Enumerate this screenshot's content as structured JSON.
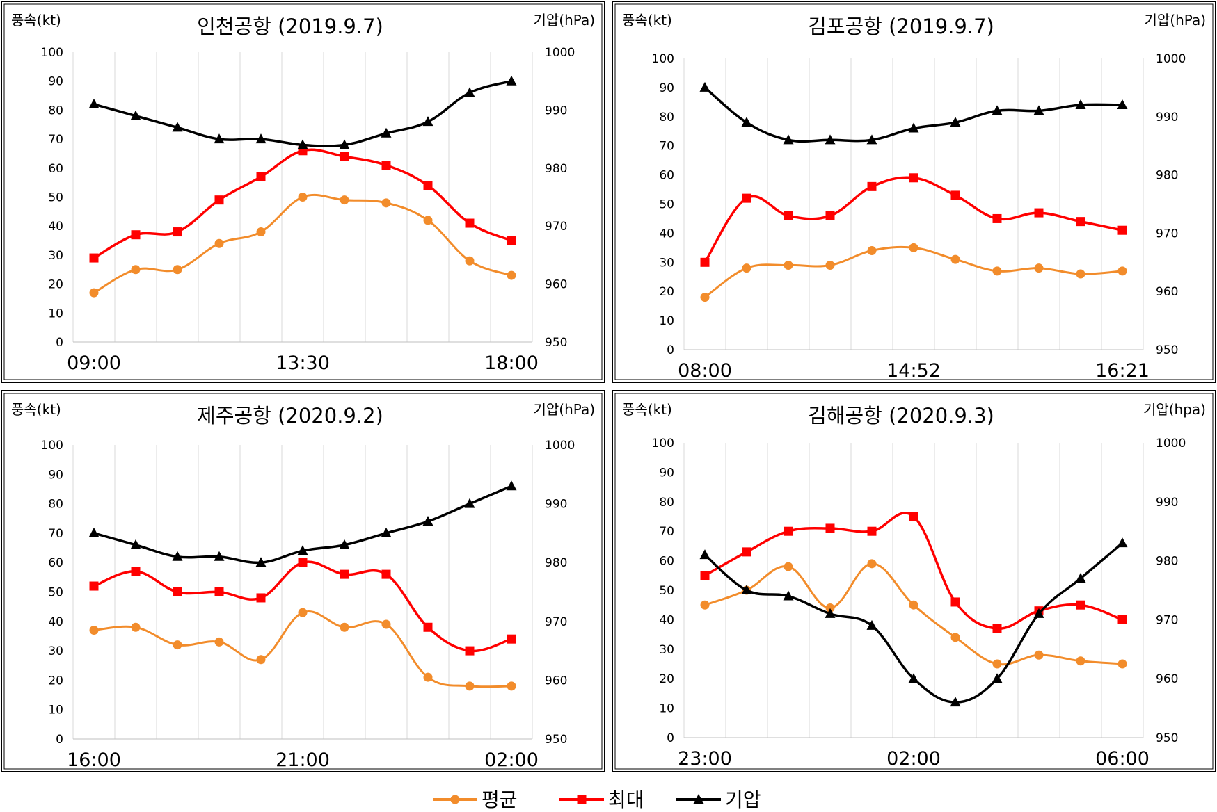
{
  "colors": {
    "avg": "#F28C2B",
    "max": "#FF0000",
    "pressure": "#000000",
    "grid": "#D9D9D9",
    "frame": "#000000"
  },
  "legend": {
    "avg": "평균",
    "max": "최대",
    "pressure": "기압"
  },
  "chart_data": [
    {
      "type": "line",
      "title": "인천공항 (2019.9.7)",
      "ylabel": "풍속(kt)",
      "y2label": "기압(hPa)",
      "ylim": [
        0,
        100
      ],
      "y2lim": [
        950,
        1000
      ],
      "y_ticks": [
        "0",
        "10",
        "20",
        "30",
        "40",
        "50",
        "60",
        "70",
        "80",
        "90",
        "100"
      ],
      "y2_ticks": [
        "950",
        "960",
        "970",
        "980",
        "990",
        "1000"
      ],
      "x_tick_labels": [
        "09:00",
        "13:30",
        "18:00"
      ],
      "series": [
        {
          "name": "평균",
          "axis": "left",
          "values": [
            17,
            25,
            25,
            34,
            38,
            50,
            49,
            48,
            42,
            28,
            23
          ]
        },
        {
          "name": "최대",
          "axis": "left",
          "values": [
            29,
            37,
            38,
            49,
            57,
            66,
            64,
            61,
            54,
            41,
            35
          ]
        },
        {
          "name": "기압",
          "axis": "right",
          "values": [
            991,
            989,
            987,
            985,
            985,
            984,
            984,
            986,
            988,
            993,
            995
          ]
        }
      ],
      "grid": true
    },
    {
      "type": "line",
      "title": "김포공항 (2019.9.7)",
      "ylabel": "풍속(kt)",
      "y2label": "기압(hPa)",
      "ylim": [
        0,
        100
      ],
      "y2lim": [
        950,
        1000
      ],
      "y_ticks": [
        "0",
        "10",
        "20",
        "30",
        "40",
        "50",
        "60",
        "70",
        "80",
        "90",
        "100"
      ],
      "y2_ticks": [
        "950",
        "960",
        "970",
        "980",
        "990",
        "1000"
      ],
      "x_tick_labels": [
        "08:00",
        "14:52",
        "16:21"
      ],
      "series": [
        {
          "name": "평균",
          "axis": "left",
          "values": [
            18,
            28,
            29,
            29,
            34,
            35,
            31,
            27,
            28,
            26,
            27
          ]
        },
        {
          "name": "최대",
          "axis": "left",
          "values": [
            30,
            52,
            46,
            46,
            56,
            59,
            53,
            45,
            47,
            44,
            41
          ]
        },
        {
          "name": "기압",
          "axis": "right",
          "values": [
            995,
            989,
            986,
            986,
            986,
            988,
            989,
            991,
            991,
            992,
            992
          ]
        }
      ],
      "grid": true
    },
    {
      "type": "line",
      "title": "제주공항 (2020.9.2)",
      "ylabel": "풍속(kt)",
      "y2label": "기압(hPa)",
      "ylim": [
        0,
        100
      ],
      "y2lim": [
        950,
        1000
      ],
      "y_ticks": [
        "0",
        "10",
        "20",
        "30",
        "40",
        "50",
        "60",
        "70",
        "80",
        "90",
        "100"
      ],
      "y2_ticks": [
        "950",
        "960",
        "970",
        "980",
        "990",
        "1000"
      ],
      "x_tick_labels": [
        "16:00",
        "21:00",
        "02:00"
      ],
      "series": [
        {
          "name": "평균",
          "axis": "left",
          "values": [
            37,
            38,
            32,
            33,
            27,
            43,
            38,
            39,
            21,
            18,
            18
          ]
        },
        {
          "name": "최대",
          "axis": "left",
          "values": [
            52,
            57,
            50,
            50,
            48,
            60,
            56,
            56,
            38,
            30,
            34
          ]
        },
        {
          "name": "기압",
          "axis": "right",
          "values": [
            985,
            983,
            981,
            981,
            980,
            982,
            983,
            985,
            987,
            990,
            993
          ]
        }
      ],
      "grid": true
    },
    {
      "type": "line",
      "title": "김해공항 (2020.9.3)",
      "ylabel": "풍속(kt)",
      "y2label": "기압(hpa)",
      "ylim": [
        0,
        100
      ],
      "y2lim": [
        950,
        1000
      ],
      "y_ticks": [
        "0",
        "10",
        "20",
        "30",
        "40",
        "50",
        "60",
        "70",
        "80",
        "90",
        "100"
      ],
      "y2_ticks": [
        "950",
        "960",
        "970",
        "980",
        "990",
        "1000"
      ],
      "x_tick_labels": [
        "23:00",
        "02:00",
        "06:00"
      ],
      "series": [
        {
          "name": "평균",
          "axis": "left",
          "values": [
            45,
            50,
            58,
            44,
            59,
            45,
            34,
            25,
            28,
            26,
            25
          ]
        },
        {
          "name": "최대",
          "axis": "left",
          "values": [
            55,
            63,
            70,
            71,
            70,
            75,
            46,
            37,
            43,
            45,
            40
          ]
        },
        {
          "name": "기압",
          "axis": "right",
          "values": [
            981,
            975,
            974,
            971,
            969,
            960,
            956,
            960,
            971,
            977,
            983
          ]
        }
      ],
      "grid": true
    }
  ]
}
